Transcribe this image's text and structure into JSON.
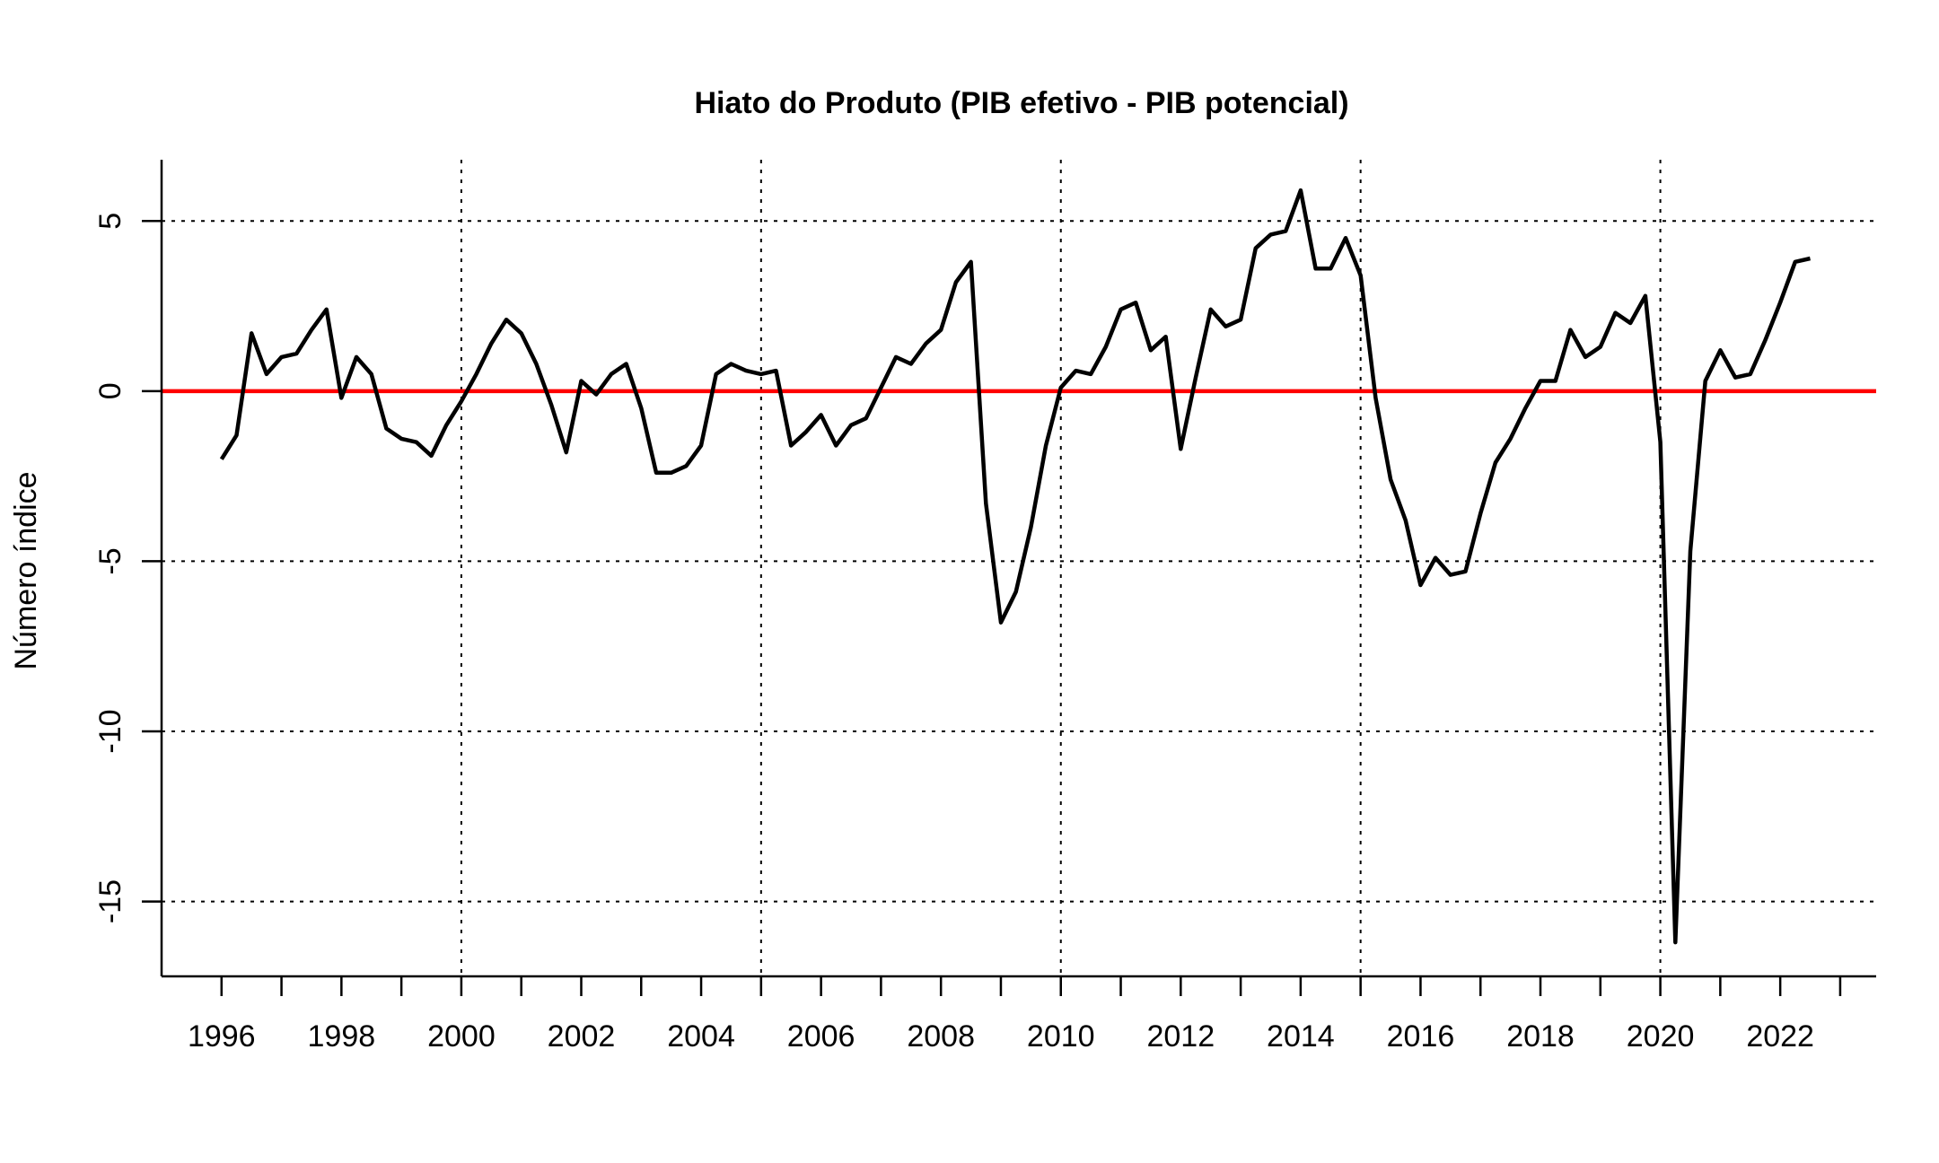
{
  "chart_data": {
    "type": "line",
    "title": "Hiato do Produto (PIB efetivo - PIB potencial)",
    "xlabel": "",
    "ylabel": "Número índice",
    "xlim": [
      1995.0,
      2023.6
    ],
    "ylim": [
      -17.2,
      6.8
    ],
    "x_ticks": [
      1996,
      1998,
      2000,
      2002,
      2004,
      2006,
      2008,
      2010,
      2012,
      2014,
      2016,
      2018,
      2020,
      2022
    ],
    "x_ticks_minor": [
      1997,
      1999,
      2001,
      2003,
      2005,
      2007,
      2009,
      2011,
      2013,
      2015,
      2017,
      2019,
      2021,
      2023
    ],
    "y_ticks": [
      -15,
      -10,
      -5,
      0,
      5
    ],
    "y_tick_labels": [
      "-15",
      "-10",
      "-5",
      "0",
      "5"
    ],
    "x_grid": [
      1995,
      2000,
      2005,
      2010,
      2015,
      2020
    ],
    "y_grid": [
      -15,
      -10,
      -5,
      0,
      5
    ],
    "grid": true,
    "legend": "none",
    "reference_line": {
      "y": 0,
      "color": "#ff0000"
    },
    "series": [
      {
        "color": "#000000",
        "x": [
          1996.0,
          1996.25,
          1996.5,
          1996.75,
          1997.0,
          1997.25,
          1997.5,
          1997.75,
          1998.0,
          1998.25,
          1998.5,
          1998.75,
          1999.0,
          1999.25,
          1999.5,
          1999.75,
          2000.0,
          2000.25,
          2000.5,
          2000.75,
          2001.0,
          2001.25,
          2001.5,
          2001.75,
          2002.0,
          2002.25,
          2002.5,
          2002.75,
          2003.0,
          2003.25,
          2003.5,
          2003.75,
          2004.0,
          2004.25,
          2004.5,
          2004.75,
          2005.0,
          2005.25,
          2005.5,
          2005.75,
          2006.0,
          2006.25,
          2006.5,
          2006.75,
          2007.0,
          2007.25,
          2007.5,
          2007.75,
          2008.0,
          2008.25,
          2008.5,
          2008.75,
          2009.0,
          2009.25,
          2009.5,
          2009.75,
          2010.0,
          2010.25,
          2010.5,
          2010.75,
          2011.0,
          2011.25,
          2011.5,
          2011.75,
          2012.0,
          2012.25,
          2012.5,
          2012.75,
          2013.0,
          2013.25,
          2013.5,
          2013.75,
          2014.0,
          2014.25,
          2014.5,
          2014.75,
          2015.0,
          2015.25,
          2015.5,
          2015.75,
          2016.0,
          2016.25,
          2016.5,
          2016.75,
          2017.0,
          2017.25,
          2017.5,
          2017.75,
          2018.0,
          2018.25,
          2018.5,
          2018.75,
          2019.0,
          2019.25,
          2019.5,
          2019.75,
          2020.0,
          2020.25,
          2020.5,
          2020.75,
          2021.0,
          2021.25,
          2021.5,
          2021.75,
          2022.0,
          2022.25,
          2022.5
        ],
        "values": [
          -2.0,
          -1.3,
          1.7,
          0.5,
          1.0,
          1.1,
          1.8,
          2.4,
          -0.2,
          1.0,
          0.5,
          -1.1,
          -1.4,
          -1.5,
          -1.9,
          -1.0,
          -0.3,
          0.5,
          1.4,
          2.1,
          1.7,
          0.8,
          -0.4,
          -1.8,
          0.3,
          -0.1,
          0.5,
          0.8,
          -0.5,
          -2.4,
          -2.4,
          -2.2,
          -1.6,
          0.5,
          0.8,
          0.6,
          0.5,
          0.6,
          -1.6,
          -1.2,
          -0.7,
          -1.6,
          -1.0,
          -0.8,
          0.1,
          1.0,
          0.8,
          1.4,
          1.8,
          3.2,
          3.8,
          -3.3,
          -6.8,
          -5.9,
          -4.0,
          -1.6,
          0.1,
          0.6,
          0.5,
          1.3,
          2.4,
          2.6,
          1.2,
          1.6,
          -1.7,
          0.4,
          2.4,
          1.9,
          2.1,
          4.2,
          4.6,
          4.7,
          5.9,
          3.6,
          3.6,
          4.5,
          3.4,
          -0.2,
          -2.6,
          -3.8,
          -5.7,
          -4.9,
          -5.4,
          -5.3,
          -3.6,
          -2.1,
          -1.4,
          -0.5,
          0.3,
          0.3,
          1.8,
          1.0,
          1.3,
          2.3,
          2.0,
          2.8,
          -1.5,
          -16.2,
          -4.7,
          0.3,
          1.2,
          0.4,
          0.5,
          1.5,
          2.6,
          3.8,
          3.9
        ]
      }
    ]
  }
}
